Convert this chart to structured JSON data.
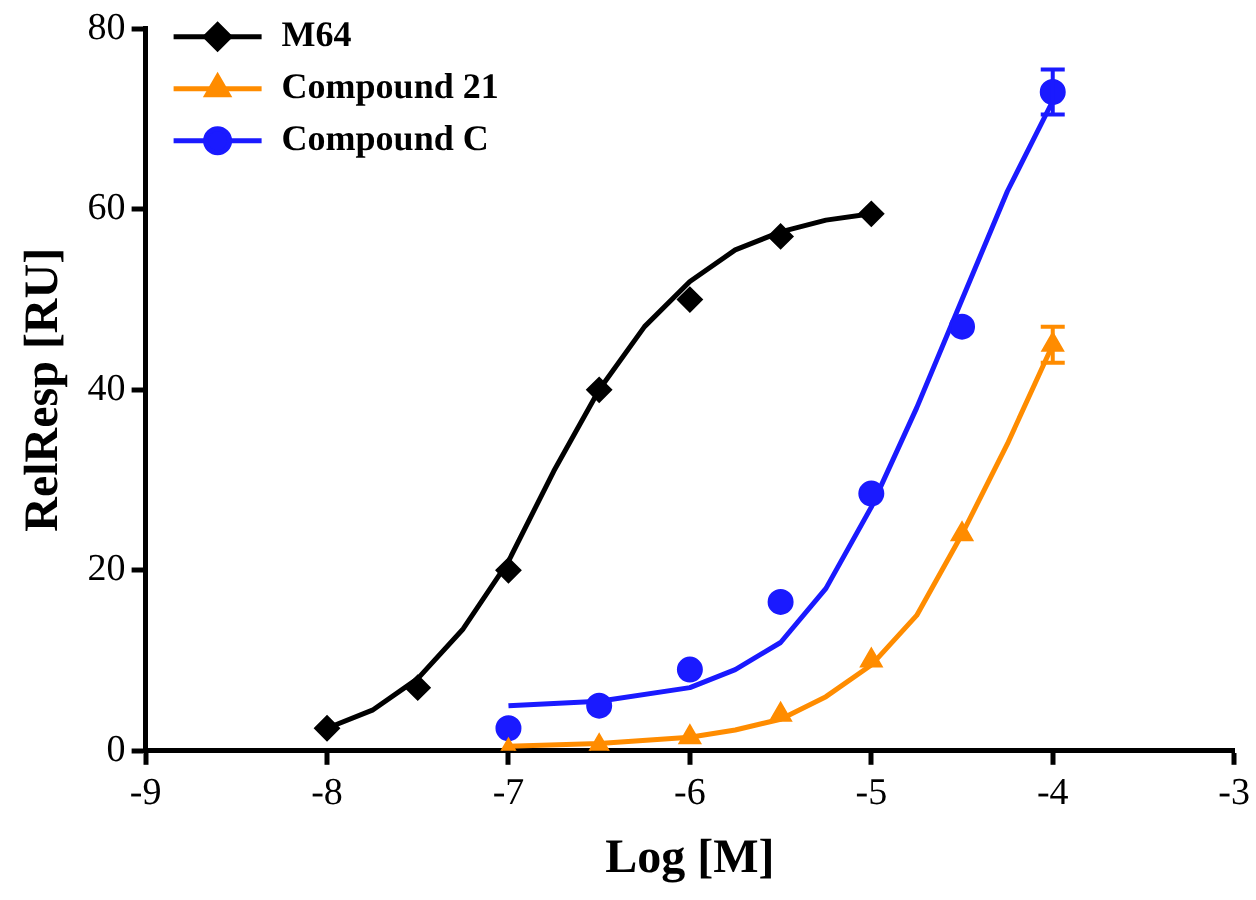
{
  "chart_data": {
    "type": "scatter",
    "xlabel": "Log [M]",
    "ylabel": "RelResp [RU]",
    "xlim": [
      -9,
      -3
    ],
    "xticks": [
      -9,
      -8,
      -7,
      -6,
      -5,
      -4,
      -3
    ],
    "ylim": [
      0,
      80
    ],
    "yticks": [
      0,
      20,
      40,
      60,
      80
    ],
    "grid": false,
    "legend": "top left",
    "series": [
      {
        "name": "M64",
        "marker": "diamond",
        "color": "#000000",
        "x": [
          -8,
          -7.5,
          -7,
          -6.5,
          -6,
          -5.5,
          -5
        ],
        "values": [
          2.5,
          7,
          20,
          40,
          50,
          57,
          59.5
        ]
      },
      {
        "name": "Compound 21",
        "marker": "triangle",
        "color": "#ff8c00",
        "x": [
          -7,
          -6.5,
          -6,
          -5.5,
          -5,
          -4.5,
          -4
        ],
        "values": [
          0,
          0.5,
          1.5,
          4,
          10,
          24,
          45
        ],
        "errors": [
          null,
          null,
          null,
          null,
          null,
          null,
          2
        ]
      },
      {
        "name": "Compound C",
        "marker": "circle",
        "color": "#1a1aff",
        "x": [
          -7,
          -6.5,
          -6,
          -5.5,
          -5,
          -4.5,
          -4
        ],
        "values": [
          2.5,
          5,
          9,
          16.5,
          28.5,
          47,
          73
        ],
        "errors": [
          null,
          null,
          null,
          null,
          null,
          null,
          2.5
        ]
      },
      {
        "type": "line",
        "marker": "none",
        "color": "#000000",
        "x": [
          -8,
          -7.75,
          -7.5,
          -7.25,
          -7,
          -6.75,
          -6.5,
          -6.25,
          -6,
          -5.75,
          -5.5,
          -5.25,
          -5
        ],
        "values": [
          2.5,
          4.5,
          8,
          13.5,
          21,
          31,
          40,
          47,
          52,
          55.5,
          57.5,
          58.8,
          59.5
        ]
      },
      {
        "type": "line",
        "marker": "none",
        "color": "#ff8c00",
        "x": [
          -7,
          -6.5,
          -6,
          -5.75,
          -5.5,
          -5.25,
          -5,
          -4.75,
          -4.5,
          -4.25,
          -4
        ],
        "values": [
          0.5,
          0.8,
          1.5,
          2.3,
          3.5,
          6,
          9.5,
          15,
          24,
          34,
          45
        ]
      },
      {
        "type": "line",
        "marker": "none",
        "color": "#1a1aff",
        "x": [
          -7,
          -6.5,
          -6,
          -5.75,
          -5.5,
          -5.25,
          -5,
          -4.75,
          -4.5,
          -4.25,
          -4
        ],
        "values": [
          5,
          5.5,
          7,
          9,
          12,
          18,
          27,
          38,
          50,
          62,
          72
        ]
      }
    ]
  }
}
